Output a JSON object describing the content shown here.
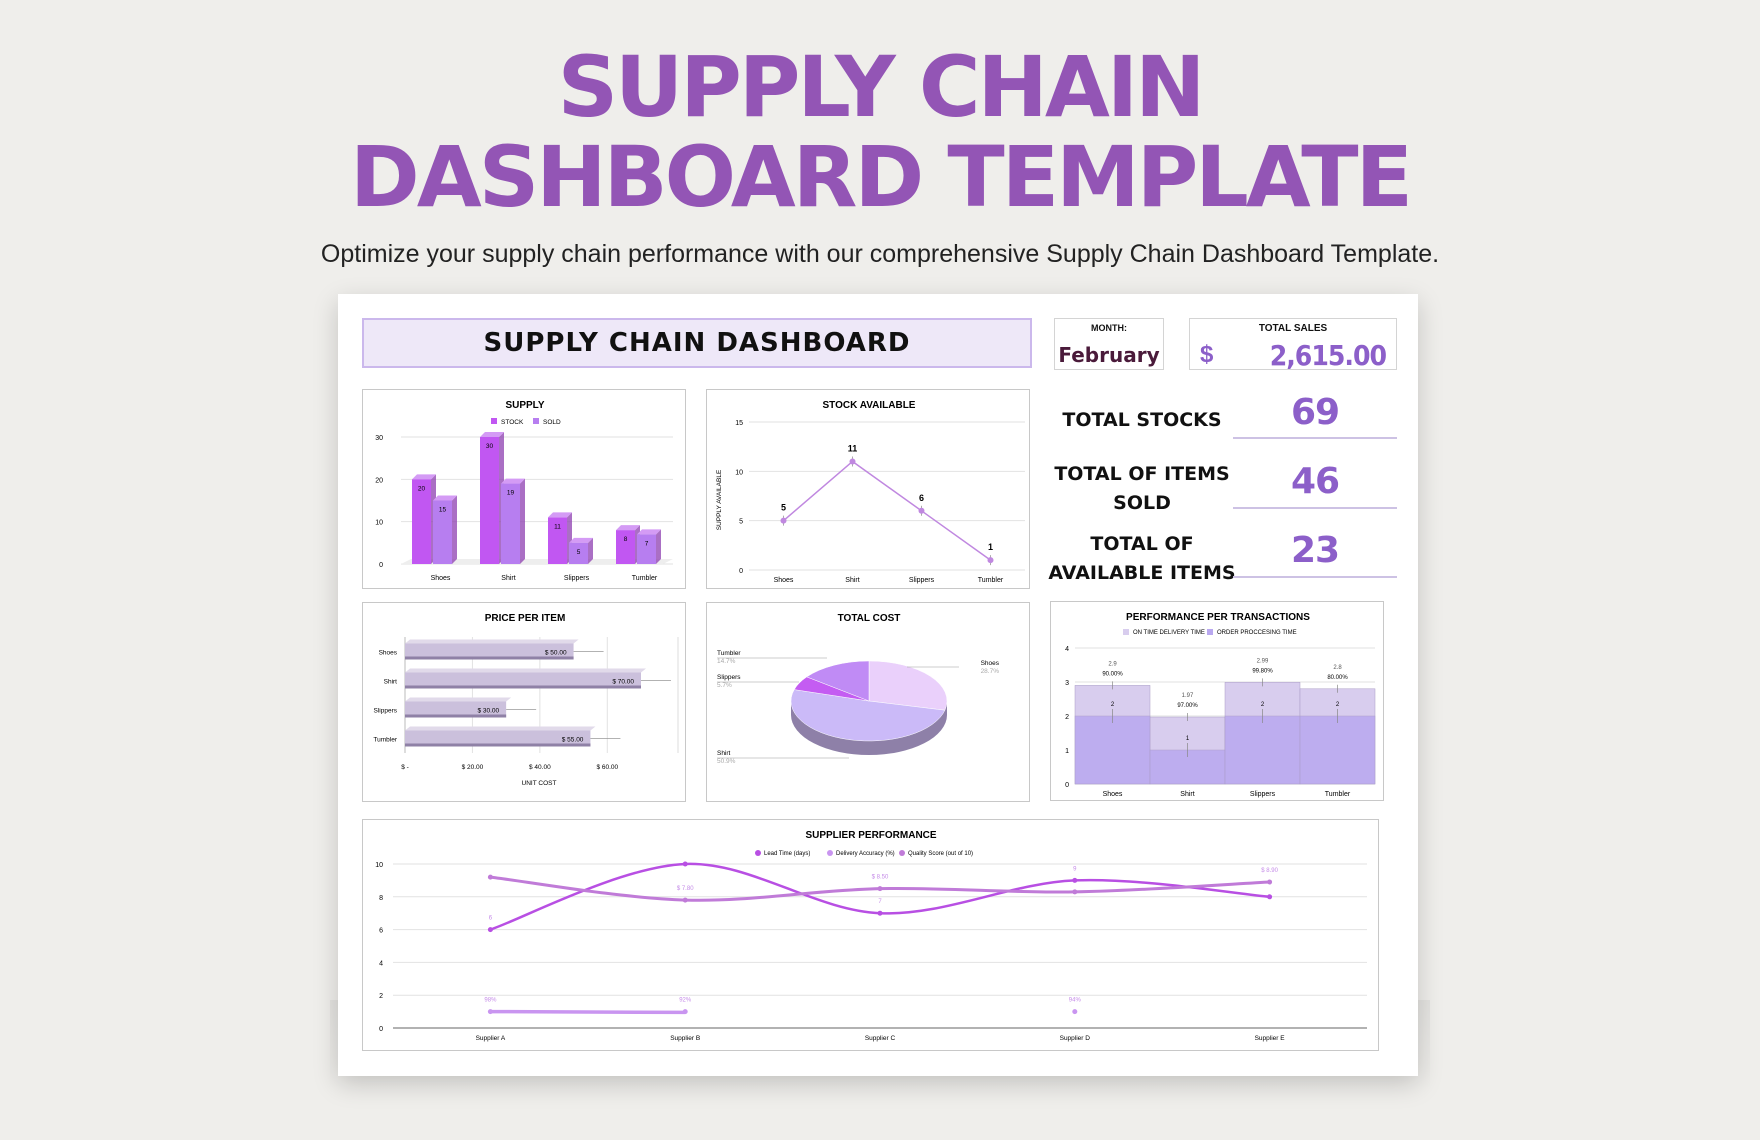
{
  "hero": {
    "title_line1": "SUPPLY CHAIN",
    "title_line2": "DASHBOARD TEMPLATE",
    "subtitle": "Optimize your supply chain performance with our comprehensive Supply Chain Dashboard Template."
  },
  "dashboard": {
    "title": "SUPPLY CHAIN DASHBOARD",
    "month_label": "MONTH:",
    "month_value": "February",
    "sales_label": "TOTAL SALES",
    "sales_currency": "$",
    "sales_value": "2,615.00",
    "kpis": [
      {
        "label_l1": "TOTAL STOCKS",
        "label_l2": "",
        "value": "69"
      },
      {
        "label_l1": "TOTAL OF ITEMS",
        "label_l2": "SOLD",
        "value": "46"
      },
      {
        "label_l1": "TOTAL OF",
        "label_l2": "AVAILABLE ITEMS",
        "value": "23"
      }
    ]
  },
  "colors": {
    "accent": "#8c5fc9",
    "title": "#9355b5",
    "bar_stock": "#c157f2",
    "bar_sold": "#b77ef0",
    "line": "#c088e0",
    "hbar": "#cbc0dc",
    "pie_shoes": "#ead0fb",
    "pie_shirt": "#cbbaf8",
    "pie_slippers": "#c45cf2",
    "pie_tumbler": "#c08bf5"
  },
  "chart_data": [
    {
      "type": "bar",
      "title": "SUPPLY",
      "categories": [
        "Shoes",
        "Shirt",
        "Slippers",
        "Tumbler"
      ],
      "series": [
        {
          "name": "STOCK",
          "values": [
            20,
            30,
            11,
            8
          ]
        },
        {
          "name": "SOLD",
          "values": [
            15,
            19,
            5,
            7
          ]
        }
      ],
      "ylim": [
        0,
        30
      ],
      "yticks": [
        "0",
        "10",
        "20",
        "30"
      ],
      "legend": "top"
    },
    {
      "type": "line",
      "title": "STOCK AVAILABLE",
      "categories": [
        "Shoes",
        "Shirt",
        "Slippers",
        "Tumbler"
      ],
      "values": [
        5,
        11,
        6,
        1
      ],
      "ylabel": "SUPPLY AVAILABLE",
      "ylim": [
        0,
        15
      ],
      "yticks": [
        "0",
        "5",
        "10",
        "15"
      ]
    },
    {
      "type": "bar",
      "orientation": "horizontal",
      "title": "PRICE PER ITEM",
      "categories": [
        "Shoes",
        "Shirt",
        "Slippers",
        "Tumbler"
      ],
      "values": [
        50,
        70,
        30,
        55
      ],
      "value_labels": [
        "$ 50.00",
        "$ 70.00",
        "$ 30.00",
        "$ 55.00"
      ],
      "xlabel": "UNIT COST",
      "xlim": [
        0,
        70
      ],
      "xticks": [
        "$ -",
        "$ 20.00",
        "$ 40.00",
        "$ 60.00"
      ]
    },
    {
      "type": "pie",
      "title": "TOTAL COST",
      "slices": [
        {
          "name": "Shoes",
          "value": 28.7,
          "label": "28.7%"
        },
        {
          "name": "Shirt",
          "value": 50.9,
          "label": "50.9%"
        },
        {
          "name": "Slippers",
          "value": 5.7,
          "label": "5.7%"
        },
        {
          "name": "Tumbler",
          "value": 14.7,
          "label": "14.7%"
        }
      ]
    },
    {
      "type": "area",
      "title": "PERFORMANCE PER TRANSACTIONS",
      "categories": [
        "Shoes",
        "Shirt",
        "Slippers",
        "Tumbler"
      ],
      "series": [
        {
          "name": "ON TIME DELIVERY TIME",
          "values": [
            2.9,
            1.97,
            2.99,
            2.8
          ],
          "labels": [
            "2.9",
            "1.97",
            "2.99",
            "2.8"
          ]
        },
        {
          "name": "ORDER PROCCESING TIME",
          "values": [
            2,
            1,
            2,
            2
          ],
          "labels": [
            "2",
            "1",
            "2",
            "2"
          ]
        }
      ],
      "pct_labels": [
        "90.00%",
        "97.00%",
        "99.80%",
        "80.00%"
      ],
      "ylim": [
        0,
        4
      ],
      "yticks": [
        "0",
        "1",
        "2",
        "3",
        "4"
      ],
      "legend": "top"
    },
    {
      "type": "line",
      "title": "SUPPLIER PERFORMANCE",
      "categories": [
        "Supplier A",
        "Supplier B",
        "Supplier C",
        "Supplier D",
        "Supplier E"
      ],
      "series": [
        {
          "name": "Lead Time (days)",
          "values": [
            6,
            10,
            7,
            9,
            8
          ],
          "labels": [
            "6",
            "",
            "7",
            "9",
            ""
          ]
        },
        {
          "name": "Delivery Accuracy (%)",
          "values": [
            1,
            1,
            null,
            1,
            null
          ],
          "labels": [
            "98%",
            "92%",
            "",
            "94%",
            ""
          ]
        },
        {
          "name": "Quality Score (out of 10)",
          "values": [
            9.2,
            7.8,
            8.5,
            8.3,
            8.9
          ],
          "labels": [
            "",
            "$ 7.80",
            "$ 8.50",
            "",
            "$ 8.90"
          ]
        }
      ],
      "ylim": [
        0,
        10
      ],
      "yticks": [
        "0",
        "2",
        "4",
        "6",
        "8",
        "10"
      ],
      "legend": "top"
    }
  ]
}
